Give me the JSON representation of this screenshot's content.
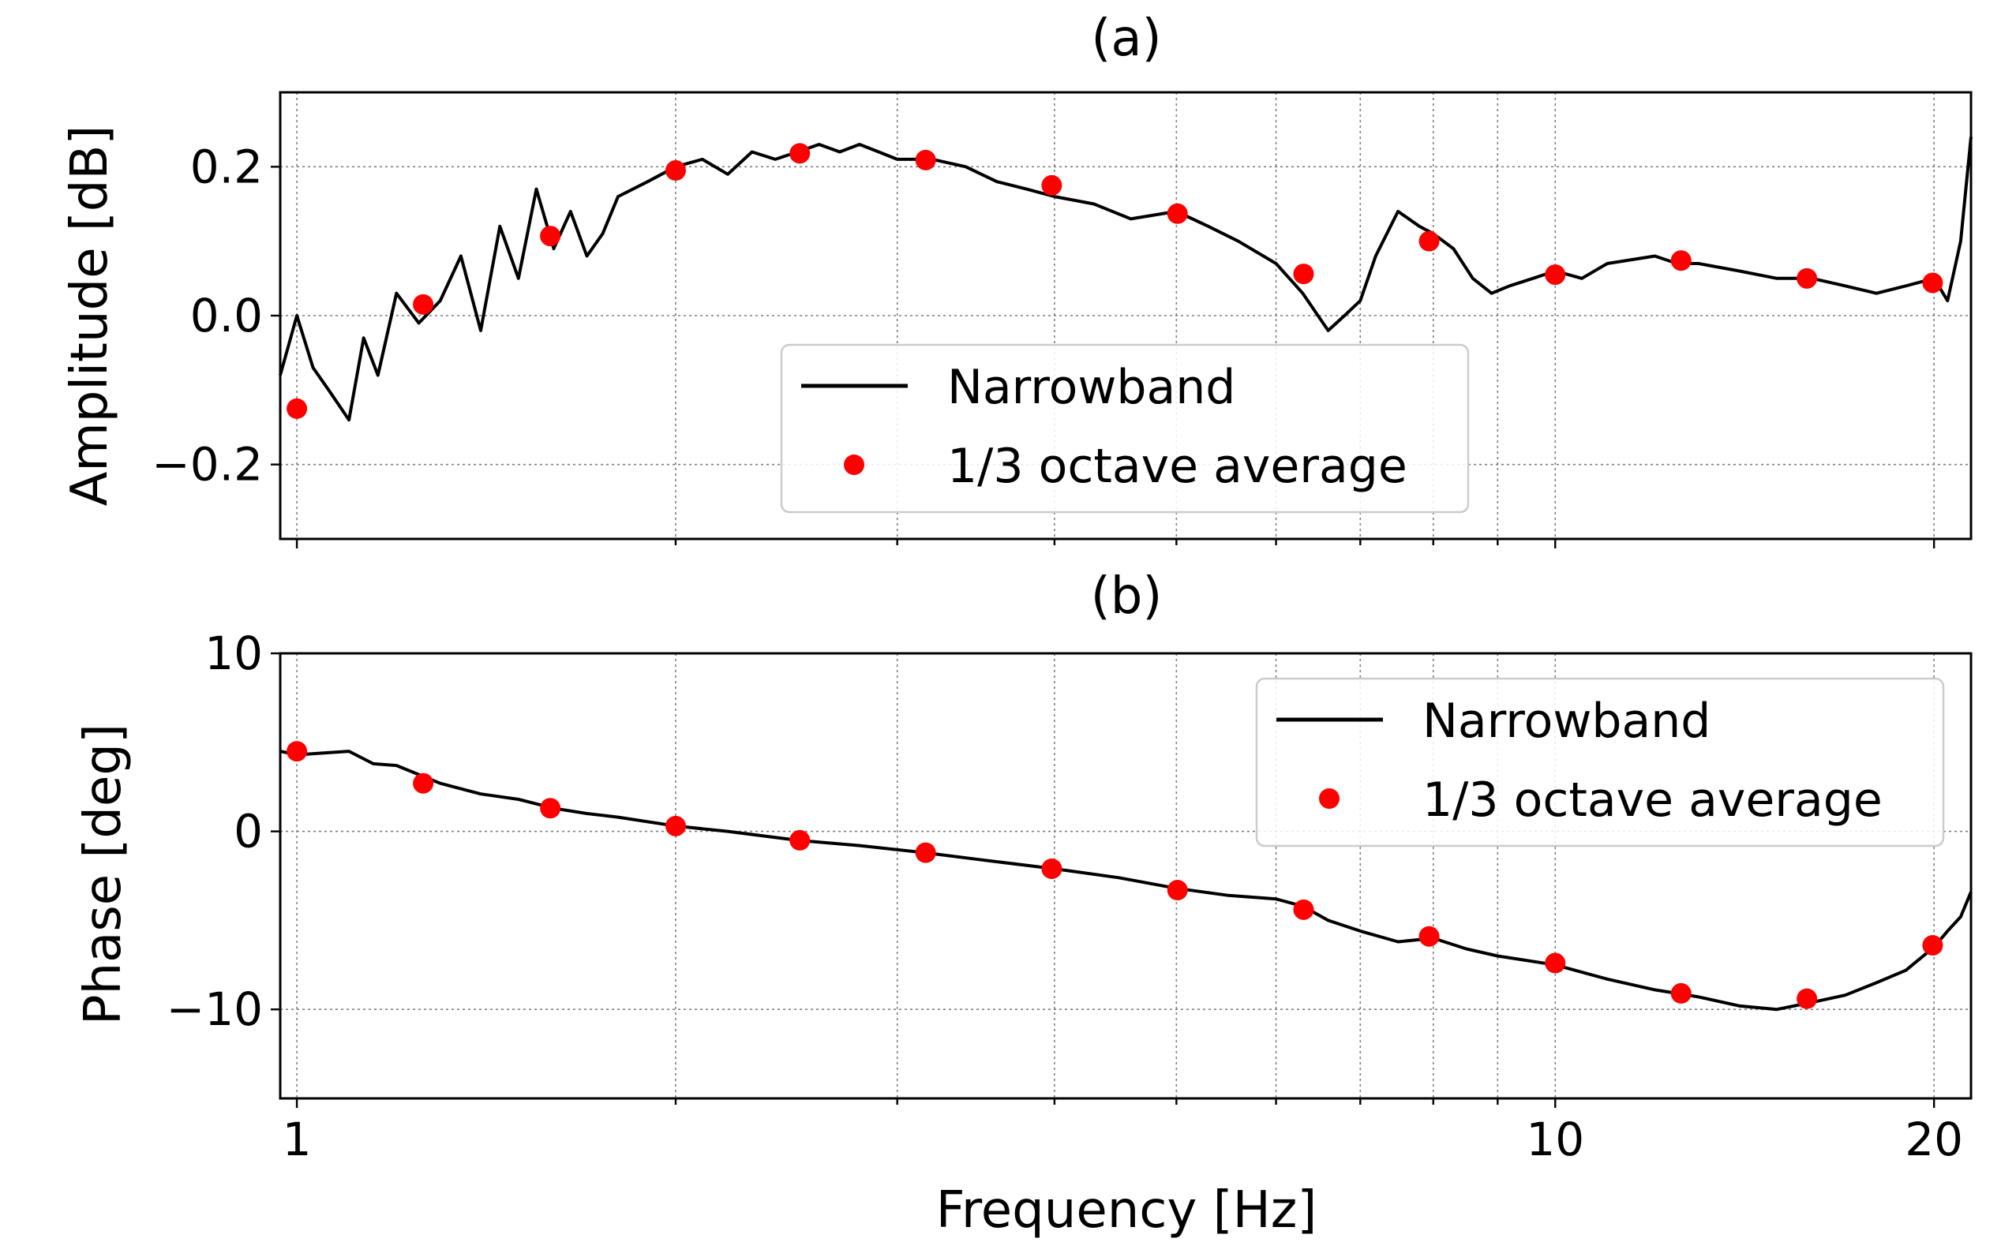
{
  "chart_data": [
    {
      "panel": "a",
      "type": "line",
      "title": "(a)",
      "xlabel": "",
      "ylabel": "Amplitude [dB]",
      "xscale": "log",
      "xlim": [
        0.97,
        21.4
      ],
      "ylim": [
        -0.3,
        0.3
      ],
      "yticks": [
        -0.2,
        0.0,
        0.2
      ],
      "ytick_labels": [
        "−0.2",
        "0.0",
        "0.2"
      ],
      "xticks": [
        1,
        10,
        20
      ],
      "xtick_labels": [
        "",
        "",
        ""
      ],
      "grid": true,
      "legend": {
        "placement": "center-bottom",
        "entries": [
          "Narrowband",
          "1/3 octave average"
        ]
      },
      "series": [
        {
          "name": "Narrowband",
          "style": "line",
          "color": "#000000",
          "x": [
            0.97,
            1.0,
            1.03,
            1.06,
            1.1,
            1.13,
            1.16,
            1.2,
            1.25,
            1.3,
            1.35,
            1.4,
            1.45,
            1.5,
            1.55,
            1.6,
            1.65,
            1.7,
            1.75,
            1.8,
            1.9,
            2.0,
            2.1,
            2.2,
            2.3,
            2.4,
            2.5,
            2.6,
            2.7,
            2.8,
            2.9,
            3.0,
            3.2,
            3.4,
            3.6,
            3.8,
            4.0,
            4.3,
            4.6,
            5.0,
            5.3,
            5.6,
            6.0,
            6.3,
            6.6,
            6.8,
            7.0,
            7.2,
            7.5,
            7.8,
            8.0,
            8.3,
            8.6,
            8.9,
            9.2,
            9.6,
            10.0,
            10.5,
            11.0,
            12.0,
            12.5,
            13.0,
            14.0,
            15.0,
            16.0,
            17.0,
            18.0,
            19.0,
            20.0,
            20.5,
            21.0,
            21.4
          ],
          "y": [
            -0.08,
            0.0,
            -0.07,
            -0.1,
            -0.14,
            -0.03,
            -0.08,
            0.03,
            -0.01,
            0.02,
            0.08,
            -0.02,
            0.12,
            0.05,
            0.17,
            0.09,
            0.14,
            0.08,
            0.11,
            0.16,
            0.18,
            0.2,
            0.21,
            0.19,
            0.22,
            0.21,
            0.22,
            0.23,
            0.22,
            0.23,
            0.22,
            0.21,
            0.21,
            0.2,
            0.18,
            0.17,
            0.16,
            0.15,
            0.13,
            0.14,
            0.12,
            0.1,
            0.07,
            0.03,
            -0.02,
            0.0,
            0.02,
            0.08,
            0.14,
            0.12,
            0.11,
            0.09,
            0.05,
            0.03,
            0.04,
            0.05,
            0.06,
            0.05,
            0.07,
            0.08,
            0.07,
            0.07,
            0.06,
            0.05,
            0.05,
            0.04,
            0.03,
            0.04,
            0.05,
            0.02,
            0.1,
            0.24
          ]
        },
        {
          "name": "1/3 octave average",
          "style": "marker",
          "color": "#ff0000",
          "x": [
            1.0,
            1.26,
            1.59,
            2.0,
            2.51,
            3.16,
            3.98,
            5.01,
            6.31,
            7.94,
            10.0,
            12.59,
            15.85,
            19.95
          ],
          "y": [
            -0.125,
            0.015,
            0.107,
            0.195,
            0.218,
            0.209,
            0.175,
            0.137,
            0.056,
            0.1,
            0.055,
            0.074,
            0.05,
            0.044
          ]
        }
      ]
    },
    {
      "panel": "b",
      "type": "line",
      "title": "(b)",
      "xlabel": "Frequency [Hz]",
      "ylabel": "Phase [deg]",
      "xscale": "log",
      "xlim": [
        0.97,
        21.4
      ],
      "ylim": [
        -15,
        10
      ],
      "yticks": [
        -10,
        0,
        10
      ],
      "ytick_labels": [
        "−10",
        "0",
        "10"
      ],
      "xticks": [
        1,
        10,
        20
      ],
      "xtick_labels": [
        "1",
        "10",
        "20"
      ],
      "grid": true,
      "legend": {
        "placement": "top-right",
        "entries": [
          "Narrowband",
          "1/3 octave average"
        ]
      },
      "series": [
        {
          "name": "Narrowband",
          "style": "line",
          "color": "#000000",
          "x": [
            0.97,
            1.0,
            1.05,
            1.1,
            1.15,
            1.2,
            1.3,
            1.4,
            1.5,
            1.6,
            1.7,
            1.8,
            2.0,
            2.2,
            2.5,
            2.8,
            3.16,
            3.5,
            4.0,
            4.5,
            5.0,
            5.5,
            6.0,
            6.3,
            6.6,
            7.0,
            7.5,
            8.0,
            8.5,
            9.0,
            10.0,
            11.0,
            12.0,
            13.0,
            14.0,
            15.0,
            16.0,
            17.0,
            18.0,
            19.0,
            20.0,
            20.5,
            21.0,
            21.4
          ],
          "y": [
            4.5,
            4.3,
            4.4,
            4.5,
            3.8,
            3.7,
            2.7,
            2.1,
            1.8,
            1.3,
            1.0,
            0.8,
            0.3,
            0.0,
            -0.5,
            -0.8,
            -1.2,
            -1.6,
            -2.1,
            -2.6,
            -3.2,
            -3.6,
            -3.8,
            -4.2,
            -5.0,
            -5.6,
            -6.2,
            -6.0,
            -6.6,
            -7.0,
            -7.5,
            -8.3,
            -8.9,
            -9.3,
            -9.8,
            -10.0,
            -9.6,
            -9.2,
            -8.5,
            -7.8,
            -6.5,
            -5.6,
            -4.8,
            -3.4
          ]
        },
        {
          "name": "1/3 octave average",
          "style": "marker",
          "color": "#ff0000",
          "x": [
            1.0,
            1.26,
            1.59,
            2.0,
            2.51,
            3.16,
            3.98,
            5.01,
            6.31,
            7.94,
            10.0,
            12.59,
            15.85,
            19.95
          ],
          "y": [
            4.5,
            2.7,
            1.3,
            0.3,
            -0.5,
            -1.2,
            -2.1,
            -3.3,
            -4.4,
            -5.9,
            -7.4,
            -9.1,
            -9.4,
            -6.4
          ]
        }
      ]
    }
  ]
}
